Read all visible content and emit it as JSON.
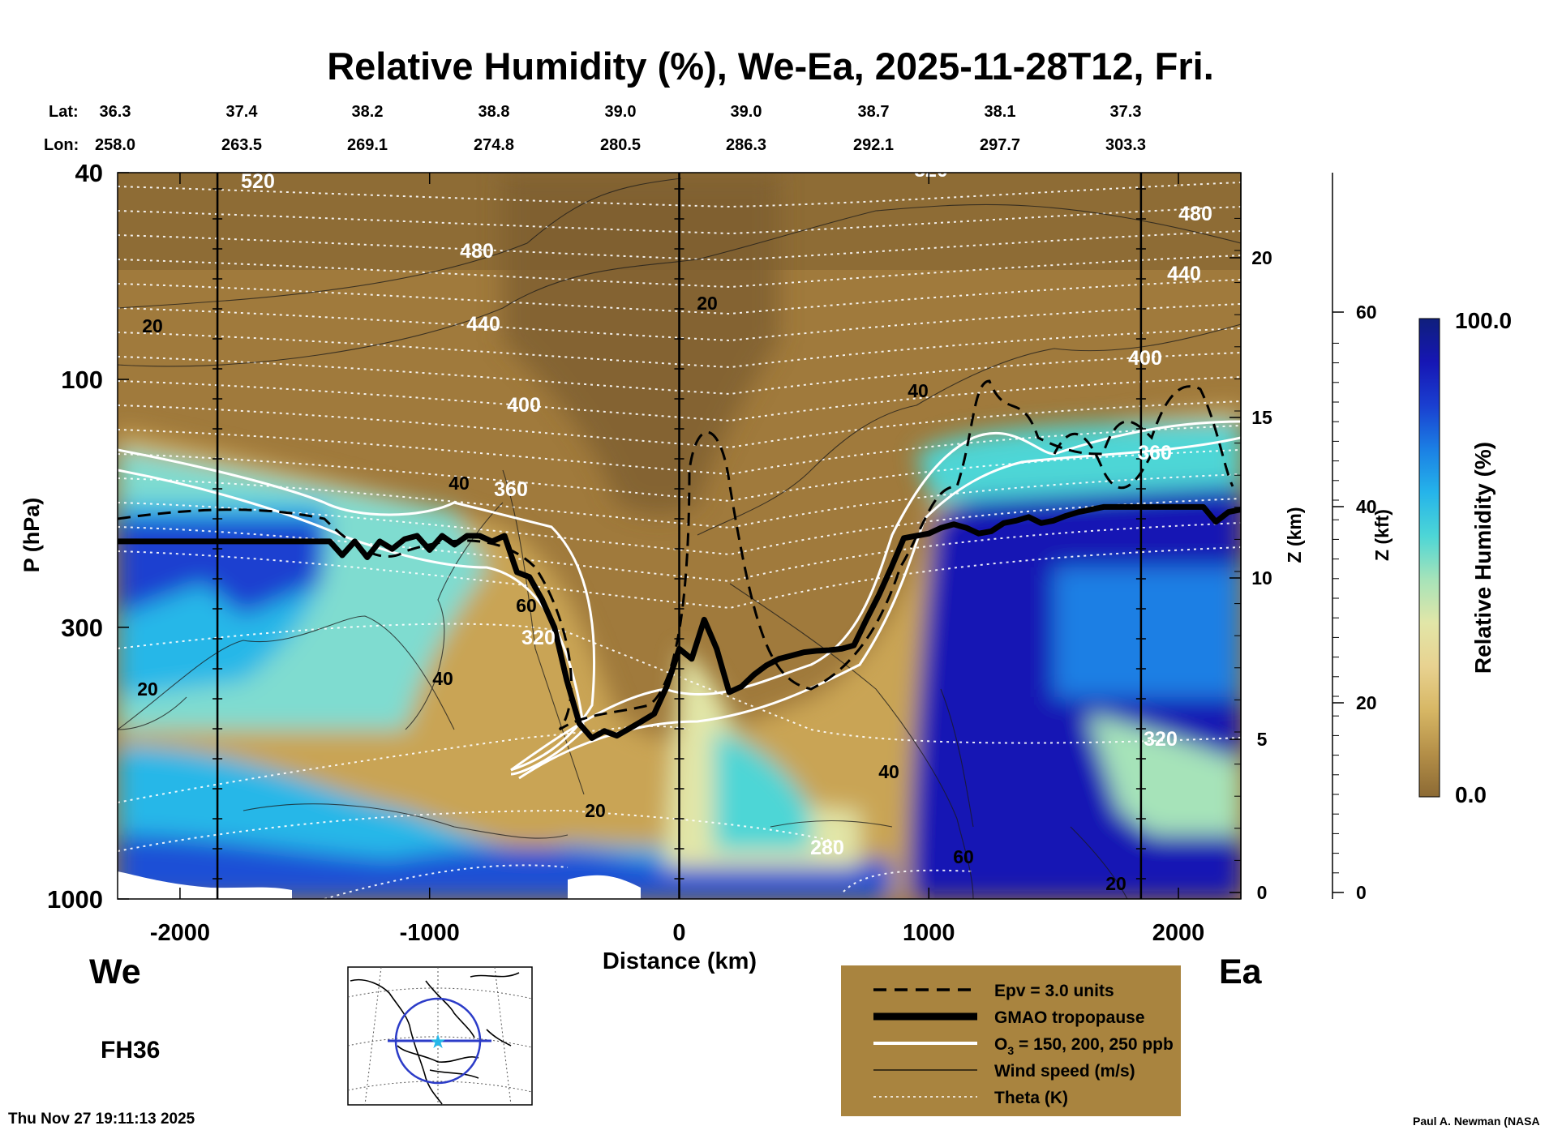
{
  "chart_data": {
    "type": "heatmap",
    "title": "Relative Humidity (%), We-Ea, 2025-11-28T12, Fri.",
    "xlabel": "Distance (km)",
    "ylabel": "P (hPa)",
    "y2label": "Z (km)",
    "y3label": "Z (kft)",
    "colorbar_label": "Relative Humidity (%)",
    "colorbar_range": [
      "0.0",
      "100.0"
    ],
    "colorbar_colors": [
      "#8c6a34",
      "#b48f48",
      "#d7b765",
      "#e8d290",
      "#e2e6a8",
      "#a6e3b9",
      "#4dd6d6",
      "#25b4ea",
      "#1b7fe4",
      "#1a3fd0",
      "#1616b4",
      "#0f1f7c"
    ],
    "xlim": [
      -2250,
      2250
    ],
    "ylim": [
      1000,
      40
    ],
    "x_ticks": [
      "-2000",
      "-1000",
      "0",
      "1000",
      "2000"
    ],
    "x_tick_values": [
      -2000,
      -1000,
      0,
      1000,
      2000
    ],
    "y_ticks": [
      "40",
      "100",
      "300",
      "1000"
    ],
    "y_tick_values": [
      40,
      100,
      300,
      1000
    ],
    "z_km_ticks": [
      "0",
      "5",
      "10",
      "15",
      "20"
    ],
    "z_kft_ticks": [
      "0",
      "20",
      "40",
      "60"
    ],
    "lat_label": "Lat:",
    "lon_label": "Lon:",
    "lat_values": [
      "36.3",
      "37.4",
      "38.2",
      "38.8",
      "39.0",
      "39.0",
      "38.7",
      "38.1",
      "37.3"
    ],
    "lon_values": [
      "258.0",
      "263.5",
      "269.1",
      "274.8",
      "280.5",
      "286.3",
      "292.1",
      "297.7",
      "303.3"
    ],
    "vertical_markers_km": [
      -1850,
      0,
      1850
    ],
    "west_label": "We",
    "east_label": "Ea",
    "forecast_hour": "FH36",
    "tropopause": {
      "x": [
        -2250,
        -1400,
        -1350,
        -1300,
        -1250,
        -1200,
        -1150,
        -1100,
        -1050,
        -1000,
        -950,
        -900,
        -850,
        -800,
        -750,
        -700,
        -650,
        -600,
        -550,
        -500,
        -450,
        -400,
        -350,
        -300,
        -250,
        -200,
        -150,
        -100,
        -50,
        0,
        50,
        100,
        150,
        200,
        250,
        300,
        350,
        400,
        450,
        500,
        550,
        600,
        650,
        700,
        750,
        800,
        850,
        900,
        950,
        1000,
        1050,
        1100,
        1150,
        1200,
        1250,
        1300,
        1350,
        1400,
        1450,
        1500,
        1550,
        1600,
        1650,
        1700,
        1750,
        1800,
        1900,
        2000,
        2100,
        2150,
        2200,
        2250
      ],
      "p": [
        205,
        205,
        218,
        205,
        220,
        205,
        212,
        203,
        200,
        213,
        200,
        208,
        200,
        200,
        205,
        200,
        235,
        240,
        265,
        300,
        380,
        460,
        490,
        475,
        485,
        470,
        455,
        440,
        390,
        330,
        345,
        290,
        330,
        400,
        390,
        370,
        355,
        345,
        340,
        335,
        333,
        332,
        330,
        325,
        290,
        260,
        230,
        202,
        200,
        198,
        193,
        190,
        193,
        198,
        196,
        189,
        187,
        184,
        189,
        187,
        183,
        180,
        178,
        176,
        176,
        176,
        176,
        176,
        176,
        188,
        180,
        178
      ]
    },
    "theta_labels": [
      "520",
      "480",
      "440",
      "400",
      "360",
      "320",
      "280"
    ],
    "wind_labels": [
      "20",
      "40",
      "60"
    ],
    "legend": [
      {
        "label": "Epv = 3.0 units",
        "style": "dashed"
      },
      {
        "label": "GMAO tropopause",
        "style": "thick"
      },
      {
        "label": "O",
        "sub": "3",
        "rest": " = 150, 200, 250 ppb",
        "style": "white"
      },
      {
        "label": "Wind speed (m/s)",
        "style": "thin"
      },
      {
        "label": "Theta (K)",
        "style": "dotted"
      }
    ]
  },
  "footer": {
    "timestamp": "Thu Nov 27 19:11:13 2025",
    "credit": "Paul A. Newman (NASA"
  }
}
